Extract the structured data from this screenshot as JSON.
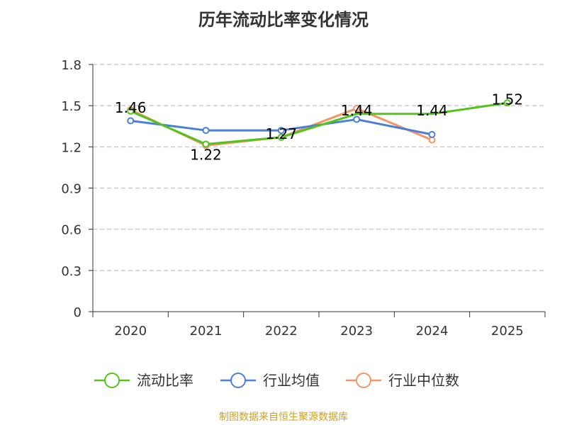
{
  "colors": {
    "current_ratio": "#52c41a",
    "industry_mean": "#4b7fd9",
    "industry_median": "#f59563",
    "source": "#c9a227",
    "grid": "#cccccc",
    "axis": "#333333"
  },
  "source_note": "制图数据来自恒生聚源数据库",
  "chart_data": {
    "type": "line",
    "title": "历年流动比率变化情况",
    "xlabel": "",
    "ylabel": "",
    "categories": [
      "2020",
      "2021",
      "2022",
      "2023",
      "2024",
      "2025"
    ],
    "ylim": [
      0,
      1.8
    ],
    "yticks": [
      0,
      0.3,
      0.6,
      0.9,
      1.2,
      1.5,
      1.8
    ],
    "ytick_labels": [
      "0",
      "0.3",
      "0.6",
      "0.9",
      "1.2",
      "1.5",
      "1.8"
    ],
    "grid": "horizontal dashed",
    "legend_position": "bottom",
    "series": [
      {
        "name": "流动比率",
        "color_key": "current_ratio",
        "values": [
          1.46,
          1.22,
          1.27,
          1.44,
          1.44,
          1.52
        ],
        "data_labels": [
          "1.46",
          "1.22",
          "1.27",
          "1.44",
          "1.44",
          "1.52"
        ]
      },
      {
        "name": "行业均值",
        "color_key": "industry_mean",
        "values": [
          1.39,
          1.32,
          1.32,
          1.4,
          1.29,
          null
        ]
      },
      {
        "name": "行业中位数",
        "color_key": "industry_median",
        "values": [
          1.47,
          1.21,
          1.27,
          1.48,
          1.25,
          null
        ]
      }
    ]
  }
}
